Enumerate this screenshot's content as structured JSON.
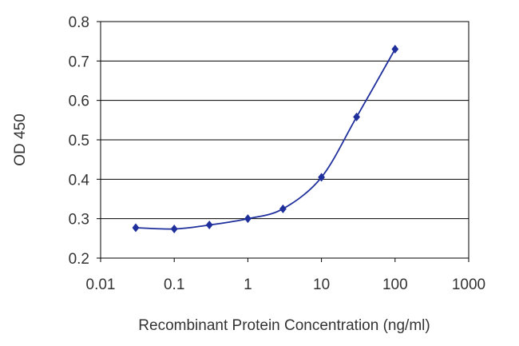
{
  "chart_data": {
    "type": "line",
    "xscale": "log",
    "xlabel": "Recombinant Protein Concentration (ng/ml)",
    "ylabel": "OD 450",
    "xlim": [
      0.01,
      1000
    ],
    "ylim": [
      0.2,
      0.8
    ],
    "xticks": [
      "0.01",
      "0.1",
      "1",
      "10",
      "100",
      "1000"
    ],
    "yticks": [
      "0.2",
      "0.3",
      "0.4",
      "0.5",
      "0.6",
      "0.7",
      "0.8"
    ],
    "grid": "horizontal",
    "series": [
      {
        "color": "#1f2f9c",
        "marker": "diamond",
        "x": [
          0.03,
          0.1,
          0.3,
          1,
          3,
          10,
          30,
          100
        ],
        "y": [
          0.277,
          0.274,
          0.284,
          0.3,
          0.325,
          0.405,
          0.558,
          0.73
        ]
      }
    ]
  }
}
